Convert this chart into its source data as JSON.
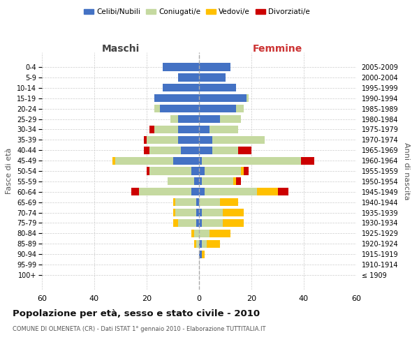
{
  "age_groups": [
    "100+",
    "95-99",
    "90-94",
    "85-89",
    "80-84",
    "75-79",
    "70-74",
    "65-69",
    "60-64",
    "55-59",
    "50-54",
    "45-49",
    "40-44",
    "35-39",
    "30-34",
    "25-29",
    "20-24",
    "15-19",
    "10-14",
    "5-9",
    "0-4"
  ],
  "birth_years": [
    "≤ 1909",
    "1910-1914",
    "1915-1919",
    "1920-1924",
    "1925-1929",
    "1930-1934",
    "1935-1939",
    "1940-1944",
    "1945-1949",
    "1950-1954",
    "1955-1959",
    "1960-1964",
    "1965-1969",
    "1970-1974",
    "1975-1979",
    "1980-1984",
    "1985-1989",
    "1990-1994",
    "1995-1999",
    "2000-2004",
    "2005-2009"
  ],
  "male": {
    "celibi": [
      0,
      0,
      0,
      0,
      0,
      1,
      1,
      1,
      3,
      2,
      3,
      10,
      7,
      8,
      8,
      8,
      15,
      17,
      14,
      8,
      14
    ],
    "coniugati": [
      0,
      0,
      0,
      1,
      2,
      7,
      8,
      8,
      20,
      10,
      16,
      22,
      12,
      12,
      9,
      3,
      2,
      0,
      0,
      0,
      0
    ],
    "vedovi": [
      0,
      0,
      0,
      1,
      1,
      2,
      1,
      1,
      0,
      0,
      0,
      1,
      0,
      0,
      0,
      0,
      0,
      0,
      0,
      0,
      0
    ],
    "divorziati": [
      0,
      0,
      0,
      0,
      0,
      0,
      0,
      0,
      3,
      0,
      1,
      0,
      2,
      1,
      2,
      0,
      0,
      0,
      0,
      0,
      0
    ]
  },
  "female": {
    "nubili": [
      0,
      0,
      1,
      1,
      0,
      1,
      1,
      0,
      2,
      1,
      2,
      1,
      5,
      5,
      4,
      8,
      14,
      18,
      14,
      10,
      12
    ],
    "coniugate": [
      0,
      0,
      0,
      2,
      4,
      8,
      8,
      8,
      20,
      12,
      14,
      38,
      10,
      20,
      11,
      8,
      3,
      1,
      0,
      0,
      0
    ],
    "vedove": [
      0,
      0,
      1,
      5,
      8,
      8,
      8,
      7,
      8,
      1,
      1,
      0,
      0,
      0,
      0,
      0,
      0,
      0,
      0,
      0,
      0
    ],
    "divorziate": [
      0,
      0,
      0,
      0,
      0,
      0,
      0,
      0,
      4,
      2,
      2,
      5,
      5,
      0,
      0,
      0,
      0,
      0,
      0,
      0,
      0
    ]
  },
  "colors": {
    "celibi": "#4472c4",
    "coniugati": "#c5d9a0",
    "vedovi": "#ffc000",
    "divorziati": "#cc0000"
  },
  "xlim": 60,
  "title": "Popolazione per età, sesso e stato civile - 2010",
  "subtitle": "COMUNE DI OLMENETA (CR) - Dati ISTAT 1° gennaio 2010 - Elaborazione TUTTITALIA.IT",
  "ylabel_left": "Fasce di età",
  "ylabel_right": "Anni di nascita",
  "maschi_label": "Maschi",
  "femmine_label": "Femmine"
}
